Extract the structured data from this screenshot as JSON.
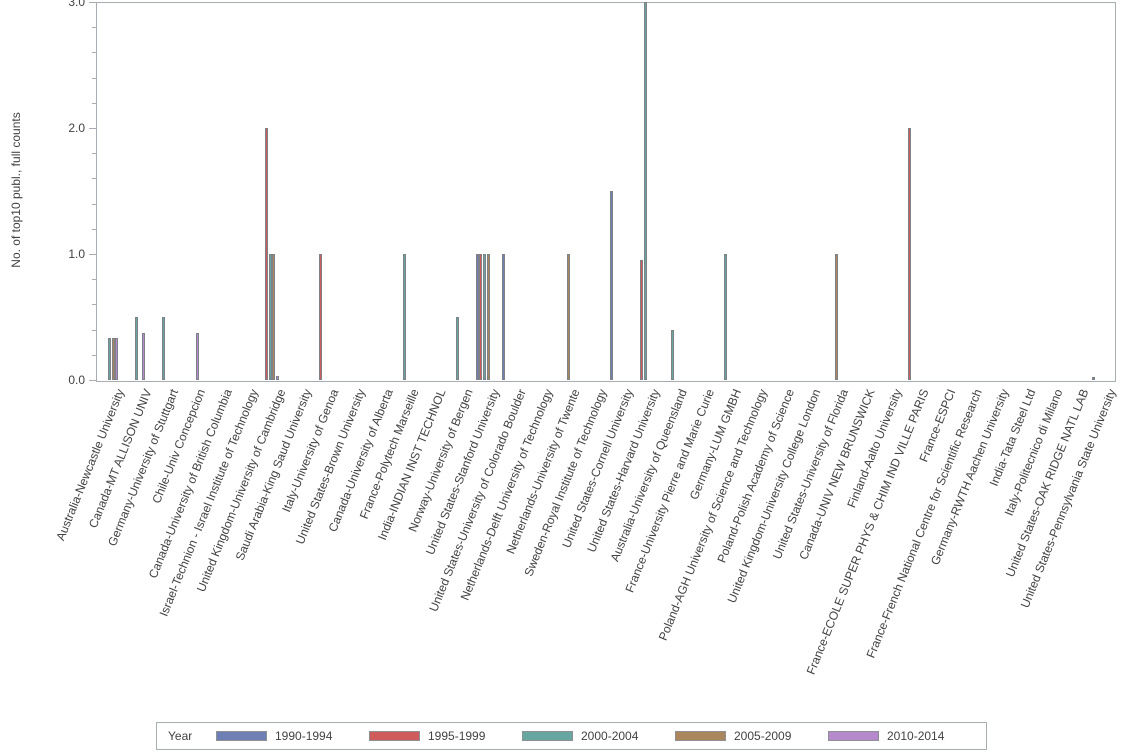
{
  "chart_data": {
    "type": "bar",
    "title": "",
    "xlabel": "",
    "ylabel": "No. of top10 publ., full counts",
    "ylim": [
      0,
      3.0
    ],
    "ytick_labels": [
      "0.0",
      "1.0",
      "2.0",
      "3.0"
    ],
    "y_minor_tick_step": 0.2,
    "grid": false,
    "legend": {
      "title": "Year",
      "position": "bottom"
    },
    "axis_color": "#a7adb3",
    "bar_outline_color": "#7e8287",
    "categories": [
      "Australia-Newcastle University",
      "Canada-MT ALLISON UNIV",
      "Germany-University of Stuttgart",
      "Chile-Univ Concepcion",
      "Canada-University of British Columbia",
      "Israel-Technion - Israel Institute of Technology",
      "United Kingdom-University of Cambridge",
      "Saudi Arabia-King Saud University",
      "Italy-University of Genoa",
      "United States-Brown University",
      "Canada-University of Alberta",
      "France-Polytech Marseille",
      "India-INDIAN INST TECHNOL",
      "Norway-University of Bergen",
      "United States-Stanford University",
      "United States-University of Colorado Boulder",
      "Netherlands-Delft University of Technology",
      "Netherlands-University of Twente",
      "Sweden-Royal Institute of Technology",
      "United States-Cornell University",
      "United States-Harvard University",
      "Australia-University of Queensland",
      "France-University Pierre and Marie Curie",
      "Germany-LUM GMBH",
      "Poland-AGH University of Science and Technology",
      "Poland-Polish Academy of Science",
      "United Kingdom-University College London",
      "United States-University of Florida",
      "Canada-UNIV NEW BRUNSWICK",
      "Finland-Aalto University",
      "France-ECOLE SUPER PHYS & CHIM IND VILLE PARIS",
      "France-ESPCI",
      "France-French National Centre for Scientific Research",
      "Germany-RWTH Aachen University",
      "India-Tata Steel Ltd",
      "Italy-Politecnico di Milano",
      "United States-OAK RIDGE NATL LAB",
      "United States-Pennsylvania State University"
    ],
    "series": [
      {
        "name": "1990-1994",
        "color": "#6F7EB3",
        "values": [
          0,
          0,
          0,
          0,
          0,
          0,
          0,
          0,
          0,
          0,
          0,
          0,
          0,
          0,
          1,
          1,
          0,
          0,
          0,
          1.5,
          0,
          0,
          0,
          0,
          0,
          0,
          0,
          0,
          0,
          0,
          0,
          0,
          0,
          0,
          0,
          0,
          0,
          0.02
        ]
      },
      {
        "name": "1995-1999",
        "color": "#D05B5B",
        "values": [
          0,
          0,
          0,
          0,
          0,
          0,
          2,
          0,
          1,
          0,
          0,
          0,
          0,
          0,
          1,
          0,
          0,
          0,
          0,
          0,
          0.95,
          0,
          0,
          0,
          0,
          0,
          0,
          0,
          0,
          0,
          2,
          0,
          0,
          0,
          0,
          0,
          0,
          0
        ]
      },
      {
        "name": "2000-2004",
        "color": "#66A5A0",
        "values": [
          0.33,
          0.5,
          0.5,
          0,
          0,
          0,
          1,
          0,
          0,
          0,
          0,
          1,
          0,
          0.5,
          1,
          0,
          0,
          0,
          0,
          0,
          3,
          0.4,
          0,
          1,
          0,
          0,
          0,
          0,
          0,
          0,
          0,
          0,
          0,
          0,
          0,
          0,
          0,
          0
        ]
      },
      {
        "name": "2005-2009",
        "color": "#A9865B",
        "values": [
          0.33,
          0,
          0,
          0,
          0,
          0,
          1,
          0,
          0,
          0,
          0,
          0,
          0,
          0,
          1,
          0,
          0,
          1,
          0,
          0,
          0,
          0,
          0,
          0,
          0,
          0,
          0,
          1,
          0,
          0,
          0,
          0,
          0,
          0,
          0,
          0,
          0,
          0
        ]
      },
      {
        "name": "2010-2014",
        "color": "#B689CD",
        "values": [
          0.33,
          0.37,
          0,
          0.37,
          0,
          0,
          0.03,
          0,
          0,
          0,
          0,
          0,
          0,
          0,
          0,
          0,
          0,
          0,
          0,
          0,
          0,
          0,
          0,
          0,
          0,
          0,
          0,
          0,
          0,
          0,
          0,
          0,
          0,
          0,
          0,
          0,
          0,
          0
        ]
      }
    ]
  }
}
